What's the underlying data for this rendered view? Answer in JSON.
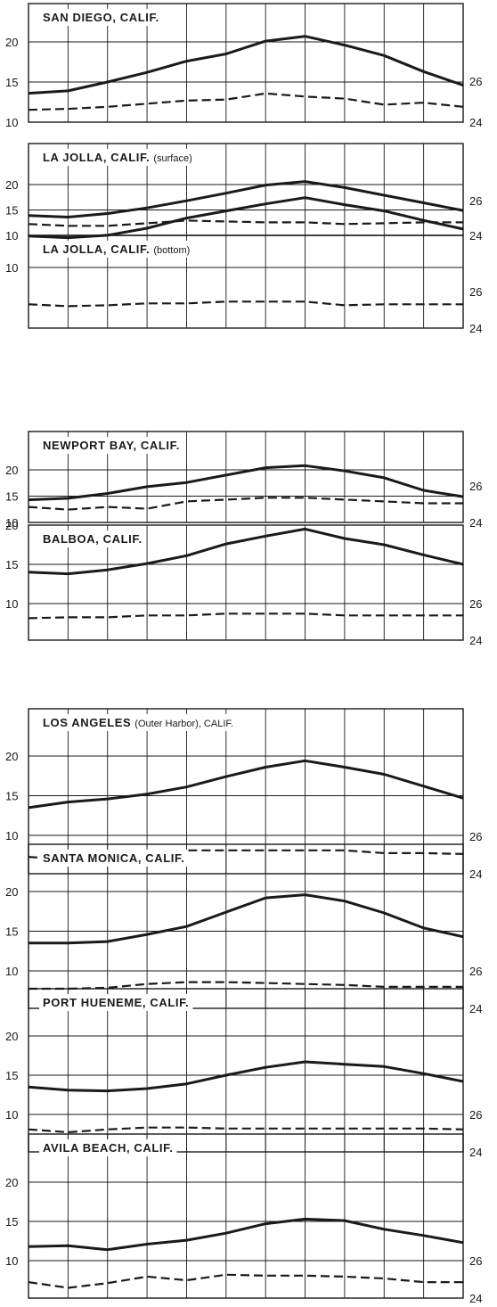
{
  "chart_data": [
    {
      "type": "line",
      "title": "SAN DIEGO, CALIF.",
      "title_note": "",
      "left_ticks": [
        10,
        15,
        20
      ],
      "right_ticks": [
        24,
        26
      ],
      "left_ylim": [
        10,
        24.5
      ],
      "right_ylim": [
        24,
        28.5
      ],
      "series": [
        {
          "style": "solid",
          "axis": "left",
          "values": [
            13.6,
            13.9,
            15,
            16.2,
            17.6,
            18.5,
            20.1,
            20.7,
            19.6,
            18.3,
            16.3,
            14.6
          ]
        },
        {
          "style": "dashed",
          "axis": "right",
          "values": [
            24.6,
            24.65,
            24.75,
            24.9,
            25.05,
            25.1,
            25.4,
            25.25,
            25.15,
            24.85,
            24.95,
            24.75
          ]
        }
      ]
    },
    {
      "type": "line",
      "title": "LA JOLLA, CALIF.",
      "title_note": "(surface)",
      "left_ticks": [
        10,
        15,
        20
      ],
      "right_ticks": [
        24,
        26
      ],
      "left_ylim": [
        10,
        24.5
      ],
      "right_ylim": [
        24,
        28.5
      ],
      "series": [
        {
          "style": "solid",
          "axis": "left",
          "values": [
            13.9,
            13.6,
            14.3,
            15.4,
            16.8,
            18.3,
            19.9,
            20.6,
            19.4,
            17.9,
            16.4,
            14.9
          ]
        },
        {
          "style": "dashed",
          "axis": "right",
          "values": [
            24.65,
            24.55,
            24.55,
            24.7,
            24.85,
            24.8,
            24.75,
            24.75,
            24.65,
            24.7,
            24.75,
            24.75
          ]
        }
      ]
    },
    {
      "type": "line",
      "title": "LA JOLLA, CALIF.",
      "title_note": "(bottom)",
      "left_ticks": [
        10,
        15,
        20
      ],
      "right_ticks": [
        24,
        26
      ],
      "left_ylim": [
        5.4,
        20
      ],
      "right_ylim": [
        24,
        28.5
      ],
      "series": [
        {
          "style": "solid",
          "axis": "left",
          "values": [
            14,
            13.8,
            14.1,
            15,
            16.3,
            17.2,
            18.1,
            18.9,
            18,
            17.2,
            16,
            14.9
          ]
        },
        {
          "style": "dashed",
          "axis": "right",
          "values": [
            25.3,
            25.2,
            25.25,
            25.35,
            25.35,
            25.45,
            25.45,
            25.45,
            25.25,
            25.3,
            25.3,
            25.3
          ]
        }
      ]
    },
    {
      "type": "line",
      "title": "NEWPORT BAY, CALIF.",
      "title_note": "",
      "left_ticks": [
        10,
        15,
        20
      ],
      "right_ticks": [
        24,
        26
      ],
      "left_ylim": [
        10,
        24.5
      ],
      "right_ylim": [
        24,
        28.5
      ],
      "series": [
        {
          "style": "solid",
          "axis": "left",
          "values": [
            14.3,
            14.6,
            15.5,
            16.8,
            17.6,
            19,
            20.4,
            20.8,
            19.8,
            18.5,
            16.1,
            14.9
          ]
        },
        {
          "style": "dashed",
          "axis": "right",
          "values": [
            24.85,
            24.7,
            24.85,
            24.75,
            25.15,
            25.25,
            25.35,
            25.35,
            25.25,
            25.15,
            25.05,
            25.05
          ]
        }
      ]
    },
    {
      "type": "line",
      "title": "BALBOA, CALIF.",
      "title_note": "",
      "left_ticks": [
        10,
        15,
        20
      ],
      "right_ticks": [
        24,
        26
      ],
      "left_ylim": [
        5.4,
        20
      ],
      "right_ylim": [
        24,
        28.5
      ],
      "series": [
        {
          "style": "solid",
          "axis": "left",
          "values": [
            14,
            13.8,
            14.3,
            15.1,
            16.1,
            17.6,
            18.6,
            19.5,
            18.3,
            17.5,
            16.2,
            15
          ]
        },
        {
          "style": "dashed",
          "axis": "right",
          "values": [
            25.2,
            25.25,
            25.25,
            25.35,
            25.35,
            25.45,
            25.45,
            25.45,
            25.35,
            25.35,
            25.35,
            25.35
          ]
        }
      ]
    },
    {
      "type": "line",
      "title": "LOS ANGELES",
      "title_note": "(Outer Harbor), CALIF.",
      "left_ticks": [
        10,
        15,
        20
      ],
      "right_ticks": [
        24,
        26
      ],
      "left_ylim": [
        5.4,
        24.5
      ],
      "right_ylim": [
        24,
        29.8
      ],
      "series": [
        {
          "style": "solid",
          "axis": "left",
          "values": [
            13.5,
            14.2,
            14.6,
            15.2,
            16.1,
            17.4,
            18.6,
            19.4,
            18.6,
            17.7,
            16.2,
            14.7
          ]
        },
        {
          "style": "dashed",
          "axis": "right",
          "values": [
            24.9,
            24.75,
            25.05,
            25.15,
            25.25,
            25.25,
            25.25,
            25.25,
            25.25,
            25.1,
            25.1,
            25.05
          ]
        }
      ]
    },
    {
      "type": "line",
      "title": "SANTA MONICA, CALIF.",
      "title_note": "",
      "left_ticks": [
        10,
        15,
        20
      ],
      "right_ticks": [
        24,
        26
      ],
      "left_ylim": [
        5.4,
        20
      ],
      "right_ylim": [
        24,
        28.5
      ],
      "series": [
        {
          "style": "solid",
          "axis": "left",
          "values": [
            13.5,
            13.5,
            13.7,
            14.6,
            15.6,
            17.4,
            19.2,
            19.6,
            18.8,
            17.3,
            15.4,
            14.3
          ]
        },
        {
          "style": "dashed",
          "axis": "right",
          "values": [
            25.05,
            25.05,
            25.1,
            25.3,
            25.4,
            25.4,
            25.35,
            25.3,
            25.25,
            25.15,
            25.15,
            25.15
          ]
        }
      ]
    },
    {
      "type": "line",
      "title": "PORT HUENEME, CALIF.",
      "title_note": "",
      "left_ticks": [
        10,
        15,
        20
      ],
      "right_ticks": [
        24,
        26
      ],
      "left_ylim": [
        5.4,
        20
      ],
      "right_ylim": [
        24,
        28.5
      ],
      "series": [
        {
          "style": "solid",
          "axis": "left",
          "values": [
            13.5,
            13.1,
            13,
            13.3,
            13.9,
            15,
            16,
            16.7,
            16.4,
            16.1,
            15.2,
            14.2
          ]
        },
        {
          "style": "dashed",
          "axis": "right",
          "values": [
            25.2,
            25.05,
            25.2,
            25.3,
            25.3,
            25.25,
            25.25,
            25.25,
            25.25,
            25.25,
            25.25,
            25.2
          ]
        }
      ]
    },
    {
      "type": "line",
      "title": "AVILA BEACH, CALIF.",
      "title_note": "",
      "left_ticks": [
        10,
        15,
        20
      ],
      "right_ticks": [
        24,
        26
      ],
      "left_ylim": [
        5.4,
        20
      ],
      "right_ylim": [
        24,
        28.5
      ],
      "series": [
        {
          "style": "solid",
          "axis": "left",
          "values": [
            11.8,
            11.9,
            11.4,
            12.1,
            12.6,
            13.5,
            14.7,
            15.3,
            15.1,
            14,
            13.2,
            12.3
          ]
        },
        {
          "style": "dashed",
          "axis": "right",
          "values": [
            24.85,
            24.55,
            24.8,
            25.15,
            24.95,
            25.25,
            25.2,
            25.2,
            25.15,
            25.05,
            24.85,
            24.85
          ]
        }
      ]
    }
  ]
}
